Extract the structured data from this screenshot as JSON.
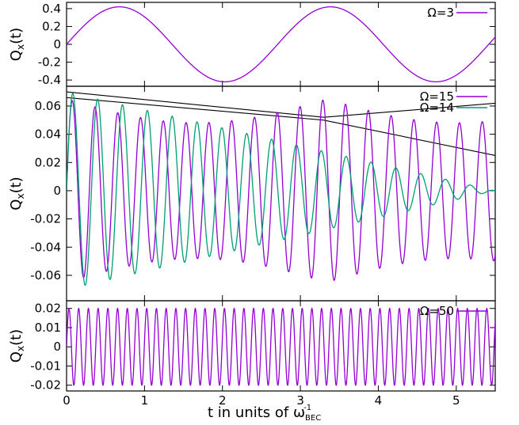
{
  "chart_data": {
    "type": "line",
    "x_range": [
      0,
      5.5
    ],
    "x_ticks": [
      0,
      1,
      2,
      3,
      4,
      5
    ],
    "x_tick_labels": [
      "0",
      "1",
      "2",
      "3",
      "4",
      "5"
    ],
    "xlabel": "t in units of ω",
    "xlabel_super": "-1",
    "xlabel_sub": "BEC",
    "colors": {
      "purple": "#9400D3",
      "green": "#009E73",
      "envelope": "#000000"
    },
    "panels": [
      {
        "ylabel": "Q",
        "ylabel_sub": "x",
        "ylabel_suffix": "(t)",
        "ylim": [
          -0.47,
          0.47
        ],
        "y_ticks": [
          0.4,
          0.2,
          0,
          -0.2,
          -0.4
        ],
        "y_tick_labels": [
          "0.4",
          "0.2",
          "0",
          "-0.2",
          "-0.4"
        ],
        "series": [
          {
            "name": "Ω=3",
            "color": "#9400D3",
            "amplitude": 0.42,
            "omega": 2.32,
            "decay": 0
          }
        ]
      },
      {
        "ylabel": "Q",
        "ylabel_sub": "x",
        "ylabel_suffix": "(t)",
        "ylim": [
          -0.078,
          0.074
        ],
        "y_ticks": [
          0.06,
          0.04,
          0.02,
          0,
          -0.02,
          -0.04,
          -0.06
        ],
        "y_tick_labels": [
          "0.06",
          "0.04",
          "0.02",
          "0",
          "-0.02",
          "-0.04",
          "-0.06"
        ],
        "series": [
          {
            "name": "Ω=15",
            "color": "#9400D3",
            "amplitude": 0.065,
            "omega": 21.5,
            "beat": {
              "rate": 0.94,
              "depth": 0.26
            }
          },
          {
            "name": "Ω=14",
            "color": "#009E73",
            "amplitude": 0.07,
            "omega": 19.7,
            "decay": 0.182
          }
        ],
        "envelopes": [
          {
            "x": [
              0,
              3.3,
              5.5
            ],
            "y": [
              0.066,
              0.05,
              0.025
            ]
          },
          {
            "x": [
              0,
              3.3,
              5.5
            ],
            "y": [
              0.07,
              0.052,
              0.062
            ]
          }
        ]
      },
      {
        "ylabel": "Q",
        "ylabel_sub": "x",
        "ylabel_suffix": "(t)",
        "ylim": [
          -0.023,
          0.024
        ],
        "y_ticks": [
          0.02,
          0.01,
          0,
          -0.01,
          -0.02
        ],
        "y_tick_labels": [
          "0.02",
          "0.01",
          "0",
          "-0.01",
          "-0.02"
        ],
        "series": [
          {
            "name": "Ω=50",
            "color": "#9400D3",
            "amplitude": 0.02,
            "omega": 50.4,
            "decay": 0
          }
        ]
      }
    ]
  }
}
